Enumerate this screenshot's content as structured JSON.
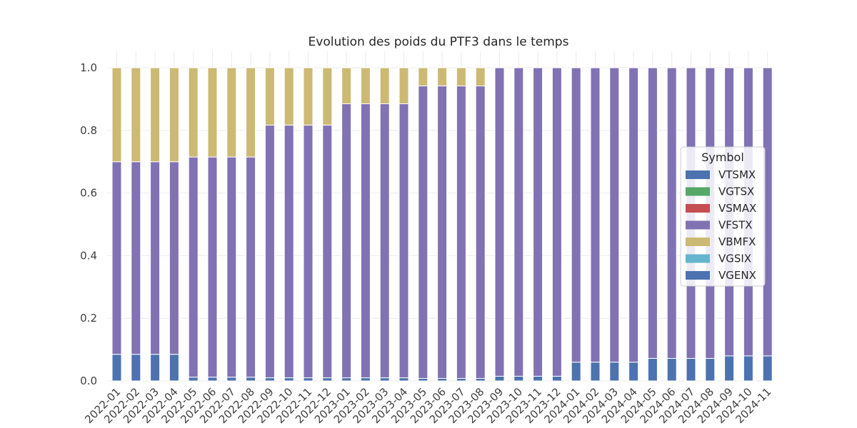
{
  "chart_data": {
    "type": "bar",
    "stacked": true,
    "title": "Evolution des poids du PTF3 dans le temps",
    "xlabel": "",
    "ylabel": "",
    "ylim": [
      0,
      1.0
    ],
    "yticks": [
      "0.0",
      "0.2",
      "0.4",
      "0.6",
      "0.8",
      "1.0"
    ],
    "grid": true,
    "legend": {
      "title": "Symbol",
      "placement": "center-right"
    },
    "categories": [
      "2022-01",
      "2022-02",
      "2022-03",
      "2022-04",
      "2022-05",
      "2022-06",
      "2022-07",
      "2022-08",
      "2022-09",
      "2022-10",
      "2022-11",
      "2022-12",
      "2023-01",
      "2023-02",
      "2023-03",
      "2023-04",
      "2023-05",
      "2023-06",
      "2023-07",
      "2023-08",
      "2023-09",
      "2023-10",
      "2023-11",
      "2023-12",
      "2024-01",
      "2024-02",
      "2024-03",
      "2024-04",
      "2024-05",
      "2024-06",
      "2024-07",
      "2024-08",
      "2024-09",
      "2024-10",
      "2024-11"
    ],
    "series": [
      {
        "name": "VTSMX",
        "color": "#4c72b0",
        "values": [
          0.085,
          0.085,
          0.085,
          0.085,
          0.012,
          0.012,
          0.012,
          0.012,
          0.01,
          0.01,
          0.01,
          0.01,
          0.01,
          0.01,
          0.01,
          0.01,
          0.008,
          0.008,
          0.008,
          0.008,
          0.015,
          0.015,
          0.015,
          0.015,
          0.06,
          0.06,
          0.06,
          0.06,
          0.072,
          0.072,
          0.072,
          0.072,
          0.08,
          0.08,
          0.08
        ]
      },
      {
        "name": "VGTSX",
        "color": "#55a868",
        "values": [
          0,
          0,
          0,
          0,
          0,
          0,
          0,
          0,
          0,
          0,
          0,
          0,
          0,
          0,
          0,
          0,
          0,
          0,
          0,
          0,
          0,
          0,
          0,
          0,
          0,
          0,
          0,
          0,
          0,
          0,
          0,
          0,
          0,
          0,
          0
        ]
      },
      {
        "name": "VSMAX",
        "color": "#c44e52",
        "values": [
          0,
          0,
          0,
          0,
          0,
          0,
          0,
          0,
          0,
          0,
          0,
          0,
          0,
          0,
          0,
          0,
          0,
          0,
          0,
          0,
          0,
          0,
          0,
          0,
          0,
          0,
          0,
          0,
          0,
          0,
          0,
          0,
          0,
          0,
          0
        ]
      },
      {
        "name": "VFSTX",
        "color": "#8172b3",
        "values": [
          0.615,
          0.615,
          0.615,
          0.615,
          0.703,
          0.703,
          0.703,
          0.703,
          0.807,
          0.807,
          0.807,
          0.807,
          0.875,
          0.875,
          0.875,
          0.875,
          0.934,
          0.934,
          0.934,
          0.934,
          0.985,
          0.985,
          0.985,
          0.985,
          0.94,
          0.94,
          0.94,
          0.94,
          0.928,
          0.928,
          0.928,
          0.928,
          0.92,
          0.92,
          0.92
        ]
      },
      {
        "name": "VBMFX",
        "color": "#ccb974",
        "values": [
          0.3,
          0.3,
          0.3,
          0.3,
          0.285,
          0.285,
          0.285,
          0.285,
          0.183,
          0.183,
          0.183,
          0.183,
          0.115,
          0.115,
          0.115,
          0.115,
          0.058,
          0.058,
          0.058,
          0.058,
          0,
          0,
          0,
          0,
          0,
          0,
          0,
          0,
          0,
          0,
          0,
          0,
          0,
          0,
          0
        ]
      },
      {
        "name": "VGSIX",
        "color": "#64b5cd",
        "values": [
          0,
          0,
          0,
          0,
          0,
          0,
          0,
          0,
          0,
          0,
          0,
          0,
          0,
          0,
          0,
          0,
          0,
          0,
          0,
          0,
          0,
          0,
          0,
          0,
          0,
          0,
          0,
          0,
          0,
          0,
          0,
          0,
          0,
          0,
          0
        ]
      },
      {
        "name": "VGENX",
        "color": "#4c72b0",
        "values": [
          0,
          0,
          0,
          0,
          0,
          0,
          0,
          0,
          0,
          0,
          0,
          0,
          0,
          0,
          0,
          0,
          0,
          0,
          0,
          0,
          0,
          0,
          0,
          0,
          0,
          0,
          0,
          0,
          0,
          0,
          0,
          0,
          0,
          0,
          0
        ]
      }
    ]
  }
}
